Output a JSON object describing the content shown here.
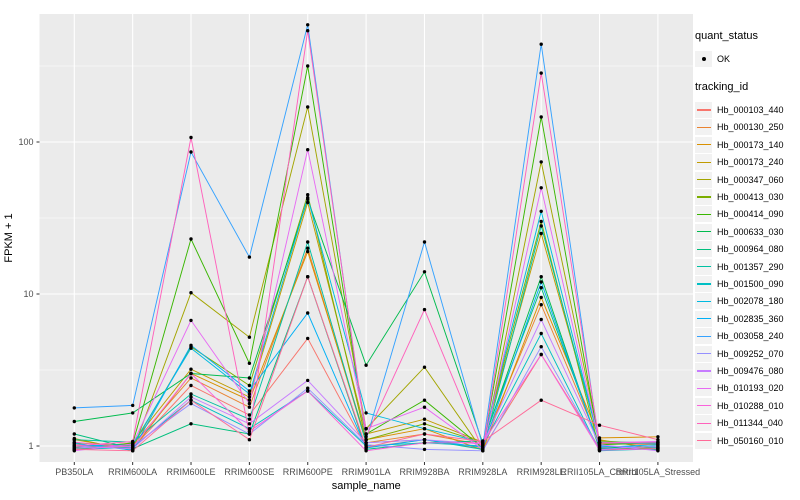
{
  "axes": {
    "x_label": "sample_name",
    "y_label": "FPKM + 1",
    "y_tick_labels": [
      "1",
      "10",
      "100"
    ],
    "y_tick_values": [
      1,
      10,
      100
    ],
    "y_minor_values": [
      3.1623,
      31.623,
      316.23
    ]
  },
  "legend": {
    "quant_status_title": "quant_status",
    "quant_status_items": [
      {
        "label": "OK"
      }
    ],
    "tracking_id_title": "tracking_id"
  },
  "style": {
    "panel_bg": "#EBEBEB",
    "grid_color": "#FFFFFF",
    "tick_label_color": "#4D4D4D",
    "axis_title_color": "#000000",
    "point_color": "#000000",
    "legend_key_bg": "#F2F2F2"
  },
  "chart_data": {
    "type": "line",
    "y_scale": "log10",
    "grid": true,
    "legend_position": "right",
    "xlabel": "sample_name",
    "ylabel": "FPKM + 1",
    "ylim_log10": [
      -0.105,
      2.842
    ],
    "categories": [
      "PB350LA",
      "RRIM600LA",
      "RRIM600LE",
      "RRIM600SE",
      "RRIM600PE",
      "RRIM901LA",
      "RRIM928BA",
      "RRIM928LA",
      "RRIM928LE",
      "RRII105LA_Control",
      "RRII105LA_Stressed"
    ],
    "series": [
      {
        "name": "Hb_000103_440",
        "color": "#F8766D",
        "values": [
          1.02,
          0.97,
          2.5,
          1.6,
          5.1,
          0.98,
          1.1,
          0.96,
          4.0,
          0.97,
          0.98
        ]
      },
      {
        "name": "Hb_000130_250",
        "color": "#EA8331",
        "values": [
          0.96,
          1.02,
          2.8,
          1.8,
          20,
          1.05,
          1.2,
          1.02,
          8.5,
          1.04,
          1.02
        ]
      },
      {
        "name": "Hb_000173_140",
        "color": "#D89000",
        "values": [
          1.1,
          0.95,
          3.0,
          2.0,
          19,
          1.1,
          1.3,
          0.94,
          9.5,
          1.13,
          1.15
        ]
      },
      {
        "name": "Hb_000173_240",
        "color": "#C09B00",
        "values": [
          0.94,
          1.05,
          3.2,
          2.1,
          40,
          1.2,
          1.5,
          1.06,
          25,
          1.1,
          0.95
        ]
      },
      {
        "name": "Hb_000347_060",
        "color": "#A3A500",
        "values": [
          1.12,
          0.93,
          10.2,
          5.2,
          170,
          1.3,
          3.3,
          0.93,
          74,
          1.08,
          1.03
        ]
      },
      {
        "name": "Hb_000413_030",
        "color": "#7CAE00",
        "values": [
          1.05,
          1.0,
          4.5,
          2.5,
          45,
          1.1,
          1.4,
          1.05,
          30,
          0.95,
          0.97
        ]
      },
      {
        "name": "Hb_000414_090",
        "color": "#39B600",
        "values": [
          0.98,
          1.04,
          23,
          3.5,
          316,
          1.2,
          2.0,
          0.97,
          146,
          1.02,
          1.05
        ]
      },
      {
        "name": "Hb_000633_030",
        "color": "#00BB4E",
        "values": [
          1.45,
          1.65,
          3.0,
          2.8,
          42,
          3.4,
          14,
          1.04,
          13,
          0.96,
          1.0
        ]
      },
      {
        "name": "Hb_000964_080",
        "color": "#00BF7D",
        "values": [
          1.2,
          0.96,
          1.4,
          1.2,
          13,
          0.95,
          1.05,
          1.08,
          11,
          1.0,
          0.94
        ]
      },
      {
        "name": "Hb_001357_290",
        "color": "#00C1A3",
        "values": [
          1.1,
          1.06,
          2.2,
          1.5,
          22,
          1.05,
          1.1,
          0.95,
          28,
          1.06,
          1.06
        ]
      },
      {
        "name": "Hb_001500_090",
        "color": "#00BFC4",
        "values": [
          0.95,
          0.98,
          2.0,
          1.3,
          2.3,
          1.0,
          1.05,
          1.0,
          5.5,
          0.93,
          0.96
        ]
      },
      {
        "name": "Hb_002078_180",
        "color": "#00BAE0",
        "values": [
          1.0,
          1.02,
          4.4,
          2.2,
          43,
          1.65,
          1.3,
          1.06,
          35,
          1.05,
          1.04
        ]
      },
      {
        "name": "Hb_002835_360",
        "color": "#00B0F6",
        "values": [
          1.04,
          0.94,
          4.6,
          2.3,
          7.5,
          0.97,
          1.1,
          0.98,
          12,
          0.98,
          1.02
        ]
      },
      {
        "name": "Hb_003058_240",
        "color": "#35A2FF",
        "values": [
          1.78,
          1.85,
          86,
          17.5,
          590,
          1.1,
          22,
          1.0,
          440,
          1.0,
          0.98
        ]
      },
      {
        "name": "Hb_009252_070",
        "color": "#9590FF",
        "values": [
          0.97,
          1.0,
          1.9,
          1.2,
          2.4,
          1.02,
          0.95,
          0.93,
          4.5,
          0.95,
          1.0
        ]
      },
      {
        "name": "Hb_009476_080",
        "color": "#C77CFF",
        "values": [
          1.0,
          0.96,
          2.1,
          1.4,
          2.7,
          1.05,
          1.1,
          1.03,
          6.8,
          1.02,
          0.93
        ]
      },
      {
        "name": "Hb_010193_020",
        "color": "#E76BF3",
        "values": [
          0.93,
          1.03,
          6.7,
          1.9,
          89,
          1.3,
          1.8,
          0.95,
          50,
          1.05,
          1.07
        ]
      },
      {
        "name": "Hb_010288_010",
        "color": "#FA62DB",
        "values": [
          1.06,
          0.98,
          3.0,
          1.25,
          2.3,
          0.93,
          1.05,
          1.05,
          4.0,
          0.94,
          0.96
        ]
      },
      {
        "name": "Hb_011344_040",
        "color": "#FF62BC",
        "values": [
          1.0,
          1.07,
          107,
          1.2,
          540,
          1.15,
          7.9,
          0.94,
          284,
          1.05,
          1.05
        ]
      },
      {
        "name": "Hb_050160_010",
        "color": "#FF6A98",
        "values": [
          0.95,
          0.93,
          2.0,
          1.1,
          13,
          0.98,
          1.2,
          1.07,
          2.0,
          1.37,
          1.1
        ]
      }
    ]
  }
}
